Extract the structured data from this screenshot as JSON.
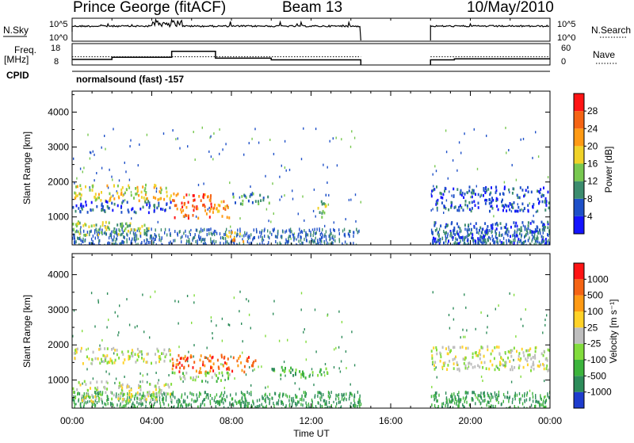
{
  "header": {
    "station": "Prince George (fitACF)",
    "beam": "Beam 13",
    "date": "10/May/2010"
  },
  "top_panels": {
    "nsky_label": "N.Sky",
    "nsky_ticks": [
      "10^5",
      "10^0"
    ],
    "nsearch_label": "N.Search",
    "nsearch_ticks": [
      "10^5",
      "10^0"
    ],
    "freq_label": "Freq.",
    "freq_unit": "[MHz]",
    "freq_ticks": [
      "18",
      "8"
    ],
    "nave_label": "Nave",
    "nave_ticks": [
      "60",
      "0"
    ],
    "cpid_label": "CPID",
    "cpid_text": "normalsound (fast) -157",
    "gap_hours": [
      14.5,
      18.0
    ],
    "freq_steps": [
      {
        "start": 0.0,
        "end": 2.0,
        "mhz": 10.6
      },
      {
        "start": 2.0,
        "end": 5.0,
        "mhz": 11.6
      },
      {
        "start": 5.0,
        "end": 7.2,
        "mhz": 14.4
      },
      {
        "start": 7.2,
        "end": 10.0,
        "mhz": 11.2
      },
      {
        "start": 10.0,
        "end": 14.5,
        "mhz": 10.4
      },
      {
        "start": 18.0,
        "end": 19.2,
        "mhz": 10.4
      },
      {
        "start": 19.2,
        "end": 24.0,
        "mhz": 10.9
      }
    ],
    "nave_dotted_level": 23
  },
  "chart_data": [
    {
      "type": "heatmap",
      "name": "power",
      "ylabel": "Slant Range [km]",
      "yticks": [
        "1000",
        "2000",
        "3000",
        "4000"
      ],
      "ylim": [
        200,
        4600
      ],
      "colorbar_label": "Power [dB]",
      "colorbar_ticks": [
        "4",
        "8",
        "12",
        "16",
        "20",
        "24",
        "28"
      ],
      "colorbar_colors": [
        "#1414ff",
        "#1e50c8",
        "#3c8c6e",
        "#78c850",
        "#f0d228",
        "#ff9a14",
        "#f56414",
        "#ff1414"
      ],
      "regions": [
        {
          "t0": 0.0,
          "t1": 5.0,
          "r0": 1500,
          "r1": 1950,
          "level": 4
        },
        {
          "t0": 0.0,
          "t1": 5.0,
          "r0": 1150,
          "r1": 1500,
          "level": 1
        },
        {
          "t0": 0.0,
          "t1": 4.0,
          "r0": 500,
          "r1": 900,
          "level": 3
        },
        {
          "t0": 5.0,
          "t1": 7.0,
          "r0": 1000,
          "r1": 1700,
          "level": 6
        },
        {
          "t0": 7.0,
          "t1": 8.0,
          "r0": 1000,
          "r1": 1500,
          "level": 5
        },
        {
          "t0": 7.6,
          "t1": 8.6,
          "r0": 300,
          "r1": 600,
          "level": 5
        },
        {
          "t0": 8.0,
          "t1": 10.0,
          "r0": 1400,
          "r1": 1700,
          "level": 2
        },
        {
          "t0": 12.3,
          "t1": 12.8,
          "r0": 1000,
          "r1": 1600,
          "level": 3
        },
        {
          "t0": 18.0,
          "t1": 24.0,
          "r0": 1200,
          "r1": 1900,
          "level": 1
        },
        {
          "t0": 18.0,
          "t1": 24.0,
          "r0": 200,
          "r1": 900,
          "level": 1
        }
      ]
    },
    {
      "type": "heatmap",
      "name": "velocity",
      "xlabel": "Time UT",
      "ylabel": "Slant Range [km]",
      "xticks": [
        "00:00",
        "04:00",
        "08:00",
        "12:00",
        "16:00",
        "20:00",
        "00:00"
      ],
      "xlim": [
        0,
        24
      ],
      "yticks": [
        "1000",
        "2000",
        "3000",
        "4000"
      ],
      "ylim": [
        200,
        4600
      ],
      "colorbar_label": "Velocity [m s⁻¹]",
      "colorbar_ticks": [
        "1000",
        "500",
        "100",
        "25",
        "-25",
        "-100",
        "-500",
        "-1000"
      ],
      "colorbar_colors": [
        "#1e3ccd",
        "#2d8c5a",
        "#3cb43c",
        "#82dc3c",
        "#bebebe",
        "#ffd228",
        "#ff9a14",
        "#f56414",
        "#ff1414"
      ],
      "regions": [
        {
          "t0": 0.0,
          "t1": 5.0,
          "r0": 1500,
          "r1": 1950,
          "level": 4
        },
        {
          "t0": 0.0,
          "t1": 5.0,
          "r0": 400,
          "r1": 1000,
          "level": 4
        },
        {
          "t0": 5.0,
          "t1": 9.2,
          "r0": 1250,
          "r1": 1750,
          "level": 7
        },
        {
          "t0": 5.0,
          "t1": 8.0,
          "r0": 1000,
          "r1": 1250,
          "level": 3
        },
        {
          "t0": 10.0,
          "t1": 12.8,
          "r0": 1100,
          "r1": 1400,
          "level": 2
        },
        {
          "t0": 18.0,
          "t1": 24.0,
          "r0": 1300,
          "r1": 2000,
          "level": 4
        }
      ]
    }
  ]
}
